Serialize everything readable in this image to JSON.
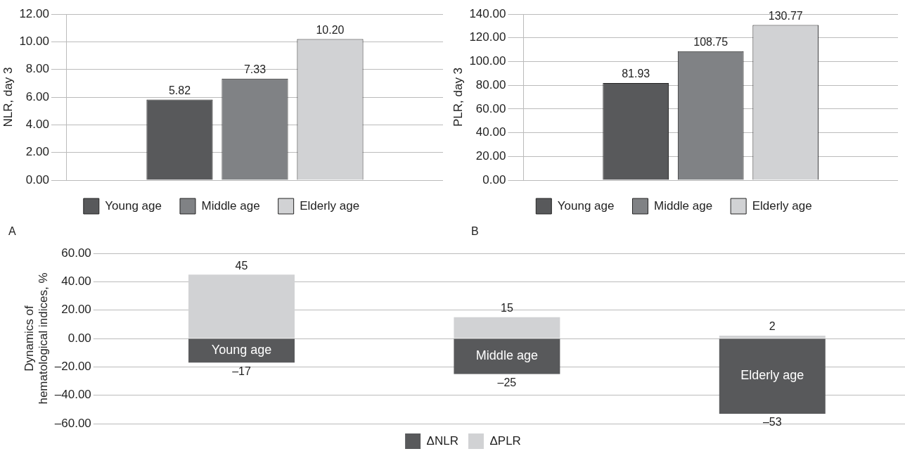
{
  "chart_data": [
    {
      "type": "bar",
      "ylabel": "NLR, day 3",
      "categories": [
        null
      ],
      "series": [
        {
          "name": "Young age",
          "color": "#58595b",
          "values": [
            5.82
          ],
          "value_labels": [
            "5.82"
          ]
        },
        {
          "name": "Middle age",
          "color": "#808285",
          "values": [
            7.33
          ],
          "value_labels": [
            "7.33"
          ]
        },
        {
          "name": "Elderly age",
          "color": "#d1d2d4",
          "values": [
            10.2
          ],
          "value_labels": [
            "10.20"
          ]
        }
      ],
      "ylim": [
        0,
        12
      ],
      "yticks": [
        {
          "value": 0,
          "label": "0.00"
        },
        {
          "value": 2,
          "label": "2.00"
        },
        {
          "value": 4,
          "label": "4.00"
        },
        {
          "value": 6,
          "label": "6.00"
        },
        {
          "value": 8,
          "label": "8.00"
        },
        {
          "value": 10,
          "label": "10.00"
        },
        {
          "value": 12,
          "label": "12.00"
        }
      ],
      "grid": "y",
      "legend": "bottom",
      "annotations": [
        "A"
      ]
    },
    {
      "type": "bar",
      "ylabel": "PLR, day 3",
      "categories": [
        null
      ],
      "series": [
        {
          "name": "Young age",
          "color": "#58595b",
          "values": [
            81.93
          ],
          "value_labels": [
            "81.93"
          ]
        },
        {
          "name": "Middle age",
          "color": "#808285",
          "values": [
            108.75
          ],
          "value_labels": [
            "108.75"
          ]
        },
        {
          "name": "Elderly age",
          "color": "#d1d2d4",
          "values": [
            130.77
          ],
          "value_labels": [
            "130.77"
          ]
        }
      ],
      "ylim": [
        0,
        140
      ],
      "yticks": [
        {
          "value": 0,
          "label": "0.00"
        },
        {
          "value": 20,
          "label": "20.00"
        },
        {
          "value": 40,
          "label": "40.00"
        },
        {
          "value": 60,
          "label": "60.00"
        },
        {
          "value": 80,
          "label": "80.00"
        },
        {
          "value": 100,
          "label": "100.00"
        },
        {
          "value": 120,
          "label": "120.00"
        },
        {
          "value": 140,
          "label": "140.00"
        }
      ],
      "grid": "y",
      "legend": "bottom",
      "annotations": [
        "B"
      ]
    },
    {
      "type": "bar",
      "stacked": true,
      "ylabel": "Dynamics of hematological indices, %",
      "categories": [
        "Young age",
        "Middle age",
        "Elderly age"
      ],
      "series": [
        {
          "name": "ΔNLR",
          "color": "#58595b",
          "values": [
            -17,
            -25,
            -53
          ],
          "value_labels": [
            "–17",
            "–25",
            "–53"
          ]
        },
        {
          "name": "ΔPLR",
          "color": "#d1d2d4",
          "values": [
            45,
            15,
            2
          ],
          "value_labels": [
            "45",
            "15",
            "2"
          ]
        }
      ],
      "ylim": [
        -60,
        60
      ],
      "yticks": [
        {
          "value": -60,
          "label": "–60.00"
        },
        {
          "value": -40,
          "label": "–40.00"
        },
        {
          "value": -20,
          "label": "–20.00"
        },
        {
          "value": 0,
          "label": "0.00"
        },
        {
          "value": 20,
          "label": "20.00"
        },
        {
          "value": 40,
          "label": "40.00"
        },
        {
          "value": 60,
          "label": "60.00"
        }
      ],
      "grid": "y",
      "legend": "bottom"
    }
  ]
}
